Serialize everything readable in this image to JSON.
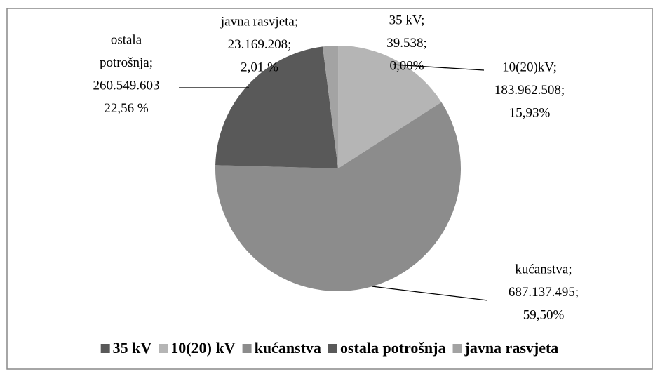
{
  "chart_data": {
    "type": "pie",
    "categories": [
      "35 kV",
      "10(20) kV",
      "kućanstva",
      "ostala potrošnja",
      "javna rasvjeta"
    ],
    "values": [
      39538,
      183962508,
      687137495,
      260549603,
      23169208
    ],
    "value_labels": [
      "39.538;",
      "183.962.508;",
      "687.137.495;",
      "260.549.603",
      "23.169.208;"
    ],
    "label_names": [
      [
        "35 kV;"
      ],
      [
        "10(20)kV;"
      ],
      [
        "kućanstva;"
      ],
      [
        "ostala",
        "potrošnja;"
      ],
      [
        "javna rasvjeta;"
      ]
    ],
    "percent_labels": [
      "0,00%",
      "15,93%",
      "59,50%",
      "22,56 %",
      "2,01 %"
    ],
    "colors": [
      "#595959",
      "#b5b5b5",
      "#8c8c8c",
      "#595959",
      "#a3a3a3"
    ],
    "legend": "bottom"
  }
}
